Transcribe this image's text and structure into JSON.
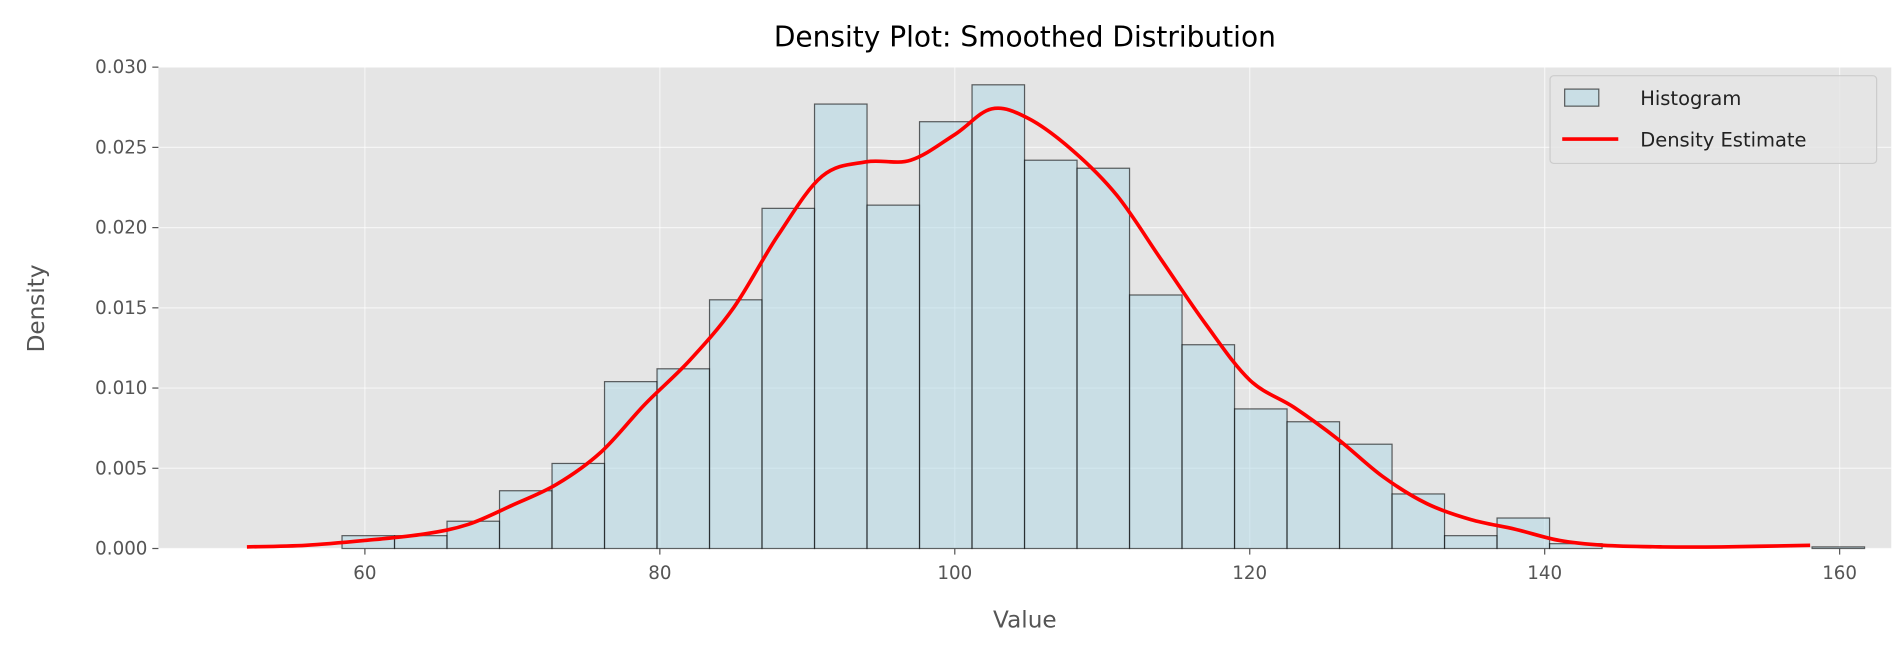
{
  "chart_data": {
    "type": "bar",
    "title": "Density Plot: Smoothed Distribution",
    "xlabel": "Value",
    "ylabel": "Density",
    "xlim": [
      46,
      163.5
    ],
    "ylim": [
      0,
      0.03
    ],
    "xticks": [
      60,
      80,
      100,
      120,
      140,
      160
    ],
    "yticks": [
      "0.000",
      "0.005",
      "0.010",
      "0.015",
      "0.020",
      "0.025",
      "0.030"
    ],
    "grid": true,
    "legend": {
      "placement": "top-right",
      "entries": [
        "Histogram",
        "Density Estimate"
      ]
    },
    "histogram": {
      "name": "Histogram",
      "color": "#add8e6",
      "edgecolor": "#000000",
      "bin_start": 58.45,
      "bin_width": 3.56,
      "values": [
        0.0008,
        0.0008,
        0.0017,
        0.0036,
        0.0053,
        0.0104,
        0.0112,
        0.0155,
        0.0212,
        0.0277,
        0.0214,
        0.0266,
        0.0289,
        0.0242,
        0.0237,
        0.0158,
        0.0127,
        0.0087,
        0.0079,
        0.0065,
        0.0034,
        0.0008,
        0.0019,
        0.0003,
        0,
        0,
        0,
        0,
        0.0001
      ]
    },
    "density": {
      "name": "Density Estimate",
      "color": "#ff0000",
      "x": [
        52,
        56,
        60,
        64,
        67,
        70,
        73,
        76,
        79,
        82,
        85,
        88,
        91,
        94,
        97,
        100,
        102.5,
        105,
        108,
        111,
        114,
        117,
        120,
        123,
        126,
        129,
        132,
        135,
        138,
        141,
        144,
        148,
        152,
        158
      ],
      "y": [
        0.0001,
        0.0002,
        0.0005,
        0.0009,
        0.0015,
        0.0027,
        0.004,
        0.006,
        0.009,
        0.0117,
        0.015,
        0.0195,
        0.0232,
        0.0241,
        0.0242,
        0.0258,
        0.0274,
        0.0268,
        0.0248,
        0.022,
        0.018,
        0.014,
        0.0105,
        0.0088,
        0.0068,
        0.0045,
        0.0028,
        0.0018,
        0.0012,
        0.0005,
        0.0002,
        0.0001,
        0.0001,
        0.0002
      ]
    }
  }
}
